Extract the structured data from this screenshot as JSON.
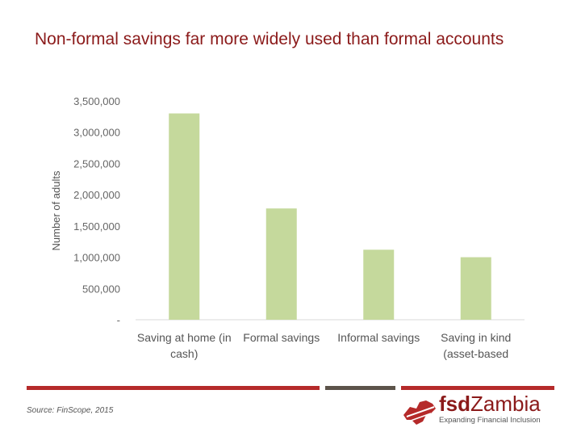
{
  "slide": {
    "title": "Non-formal savings far more widely used than formal accounts",
    "source": "Source: FinScope, 2015"
  },
  "logo": {
    "name_part1": "fsd",
    "name_part2": "Zambia",
    "tagline": "Expanding Financial Inclusion"
  },
  "colors": {
    "title": "#8b1a1a",
    "bar": "#c5d99c",
    "footer_red": "#b52a2a",
    "footer_dark": "#5c534a"
  },
  "chart_data": {
    "type": "bar",
    "categories": [
      [
        "Saving at home (in",
        "cash)"
      ],
      [
        "Formal savings"
      ],
      [
        "Informal savings"
      ],
      [
        "Saving in kind",
        "(asset-based"
      ]
    ],
    "values": [
      3300000,
      1780000,
      1120000,
      1000000
    ],
    "ylabel": "Number of adults",
    "ylim": [
      0,
      3500000
    ],
    "yticks": [
      0,
      500000,
      1000000,
      1500000,
      2000000,
      2500000,
      3000000,
      3500000
    ],
    "ytick_labels": [
      "-",
      "500,000",
      "1,000,000",
      "1,500,000",
      "2,000,000",
      "2,500,000",
      "3,000,000",
      "3,500,000"
    ],
    "grid": false,
    "legend": "none"
  }
}
